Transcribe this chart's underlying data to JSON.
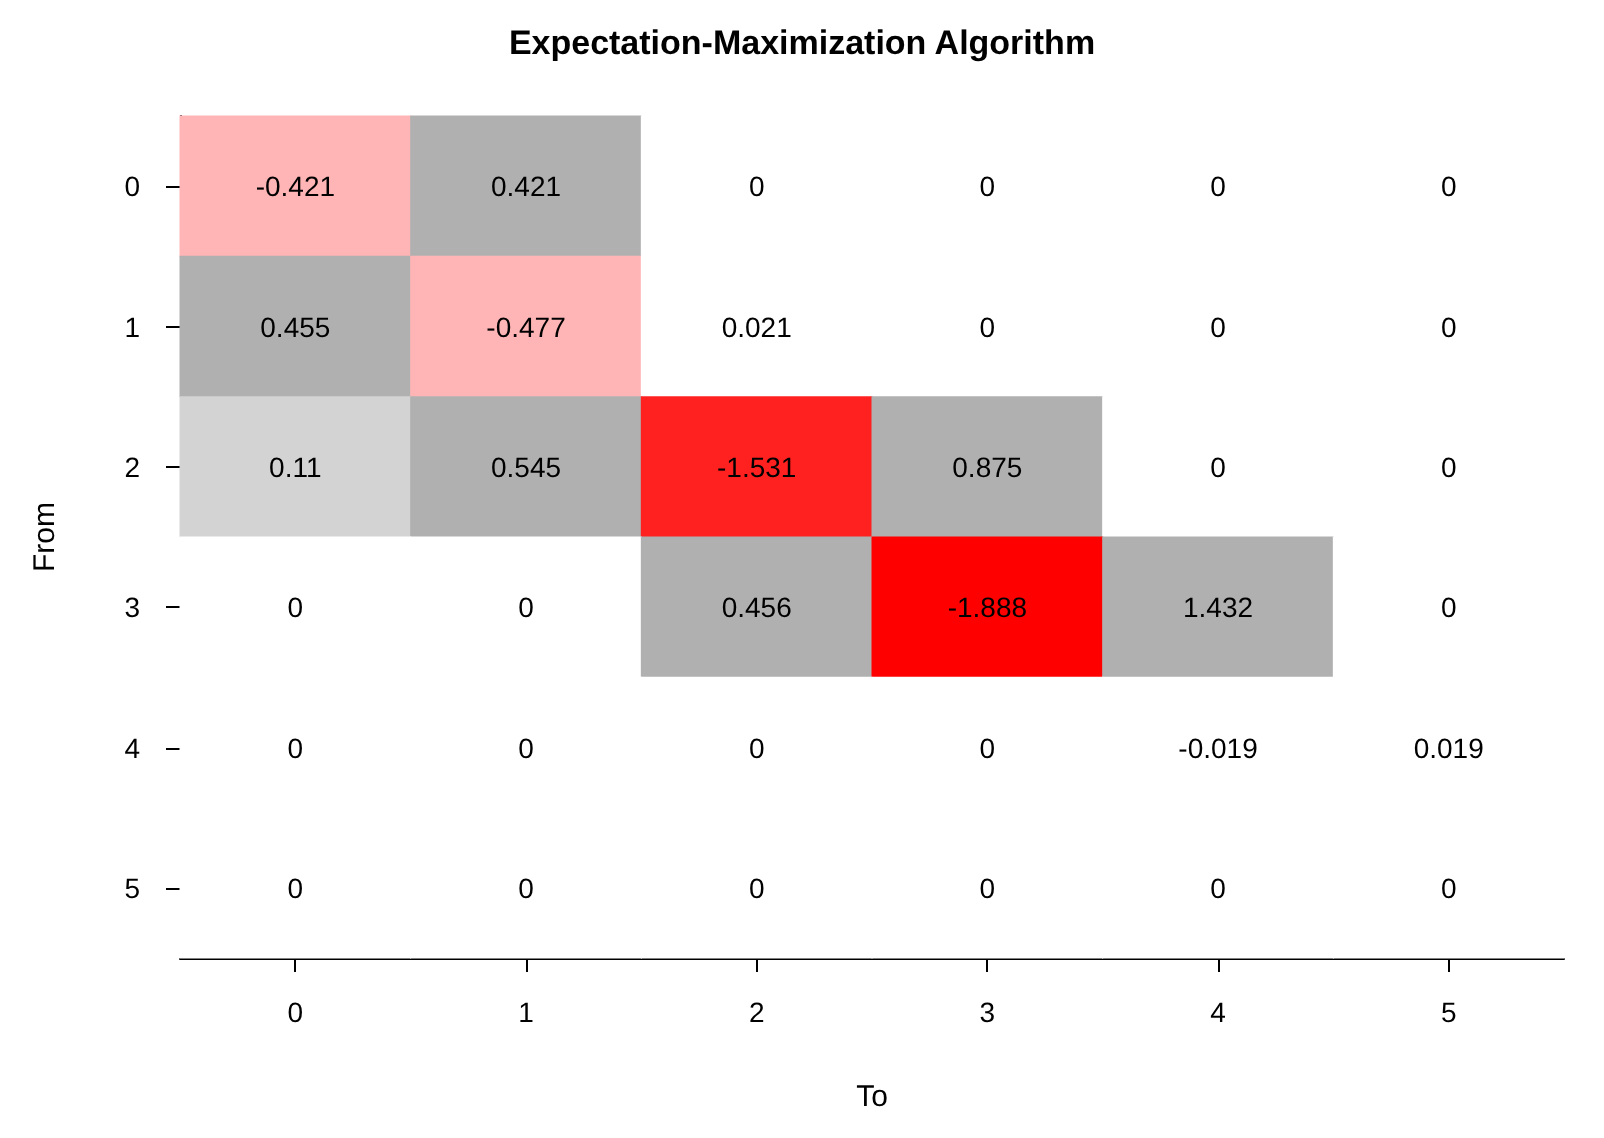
{
  "chart_data": {
    "type": "heatmap",
    "title": "Expectation-Maximization Algorithm",
    "xlabel": "To",
    "ylabel": "From",
    "categories": [
      "0",
      "1",
      "2",
      "3",
      "4",
      "5"
    ],
    "y_categories": [
      "0",
      "1",
      "2",
      "3",
      "4",
      "5"
    ],
    "cells": [
      [
        -0.421,
        0.421,
        0,
        0,
        0,
        0
      ],
      [
        0.455,
        -0.477,
        0.021,
        0,
        0,
        0
      ],
      [
        0.11,
        0.545,
        -1.531,
        0.875,
        0,
        0
      ],
      [
        0,
        0,
        0.456,
        -1.888,
        1.432,
        0
      ],
      [
        0,
        0,
        0,
        0,
        -0.019,
        0.019
      ],
      [
        0,
        0,
        0,
        0,
        0,
        0
      ]
    ],
    "data_labels": true,
    "grid": false
  }
}
